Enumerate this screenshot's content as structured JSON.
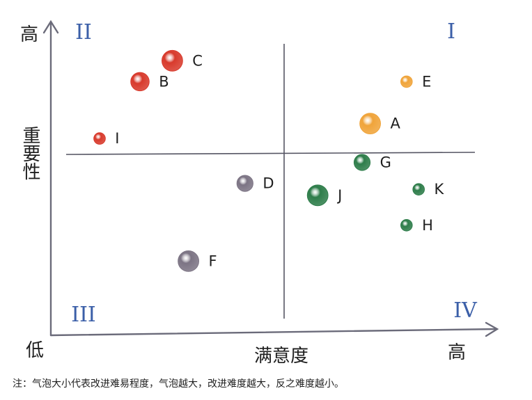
{
  "chart_data": {
    "type": "scatter",
    "subtype": "bubble",
    "title": "",
    "xlabel": "满意度",
    "ylabel": "重要性",
    "x_low_label": "低",
    "x_high_label": "高",
    "y_high_label": "高",
    "quadrants": [
      "I",
      "II",
      "III",
      "IV"
    ],
    "note": "注：气泡大小代表改进难易程度，气泡越大，改进难度越大，反之难度越小。",
    "xlim": [
      0,
      10
    ],
    "ylim": [
      0,
      10
    ],
    "grid": false,
    "points": [
      {
        "label": "C",
        "x": 2.8,
        "y": 8.9,
        "size": 3,
        "color": "#d83a2c"
      },
      {
        "label": "B",
        "x": 2.0,
        "y": 8.2,
        "size": 2.5,
        "color": "#d83a2c"
      },
      {
        "label": "I",
        "x": 1.0,
        "y": 6.3,
        "size": 1,
        "color": "#d83a2c"
      },
      {
        "label": "E",
        "x": 8.6,
        "y": 8.2,
        "size": 1,
        "color": "#f0a43a"
      },
      {
        "label": "A",
        "x": 7.7,
        "y": 6.8,
        "size": 3,
        "color": "#f0a43a"
      },
      {
        "label": "G",
        "x": 7.5,
        "y": 5.5,
        "size": 2,
        "color": "#2e7d4a"
      },
      {
        "label": "K",
        "x": 8.9,
        "y": 4.6,
        "size": 1,
        "color": "#2e7d4a"
      },
      {
        "label": "J",
        "x": 6.4,
        "y": 4.4,
        "size": 3,
        "color": "#2e7d4a"
      },
      {
        "label": "H",
        "x": 8.6,
        "y": 3.4,
        "size": 1,
        "color": "#2e7d4a"
      },
      {
        "label": "D",
        "x": 4.6,
        "y": 4.8,
        "size": 2,
        "color": "#7c7484"
      },
      {
        "label": "F",
        "x": 3.2,
        "y": 2.2,
        "size": 3,
        "color": "#7c7484"
      }
    ]
  }
}
